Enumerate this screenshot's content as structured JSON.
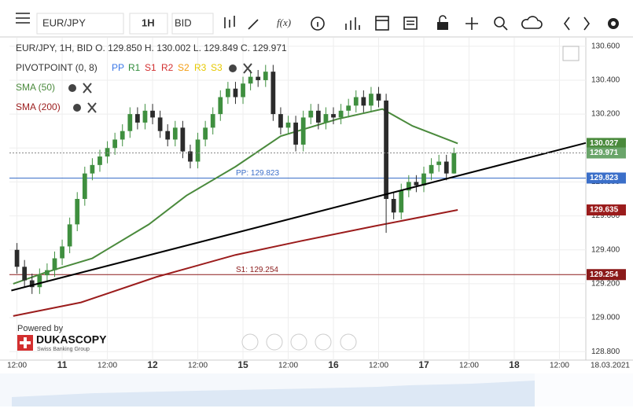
{
  "toolbar": {
    "symbol": "EUR/JPY",
    "period": "1H",
    "side": "BID",
    "fx": "f(x)"
  },
  "legend": {
    "ohlc": "EUR/JPY, 1H, BID   O. 129.850 H. 130.002 L. 129.849 C. 129.971",
    "pivot": "PIVOTPOINT (0, 8)",
    "pivot_levels": [
      {
        "name": "PP",
        "color": "#3b78e7"
      },
      {
        "name": "R1",
        "color": "#2e8b3a"
      },
      {
        "name": "S1",
        "color": "#d32f2f"
      },
      {
        "name": "R2",
        "color": "#d32f2f"
      },
      {
        "name": "S2",
        "color": "#f39c12"
      },
      {
        "name": "R3",
        "color": "#e6c800"
      },
      {
        "name": "S3",
        "color": "#e6c800"
      }
    ]
  },
  "branding": {
    "powered": "Powered by",
    "name": "DUKASCOPY",
    "tagline": "Swiss Banking Group"
  },
  "chart_data": {
    "type": "candlestick",
    "grid": true,
    "up_color": "#3f8f3f",
    "down_color": "#2b2b2b",
    "x": [
      0,
      2,
      4,
      6,
      8,
      10,
      12,
      14,
      16,
      18,
      20,
      22,
      24,
      26,
      28,
      30,
      32,
      34,
      36,
      38,
      40,
      42,
      44,
      46,
      48,
      50,
      52,
      54,
      56,
      58,
      60,
      62,
      64,
      66,
      68,
      70,
      72,
      74,
      76,
      78,
      80,
      82,
      84,
      86,
      88,
      90,
      92,
      94,
      96,
      98,
      100,
      102,
      104,
      106,
      108,
      110,
      112,
      114,
      116
    ],
    "open": [
      129.4,
      129.3,
      129.22,
      129.18,
      129.25,
      129.28,
      129.35,
      129.42,
      129.55,
      129.7,
      129.85,
      129.9,
      129.95,
      130.0,
      130.05,
      130.1,
      130.2,
      130.15,
      130.22,
      130.18,
      130.1,
      130.05,
      130.12,
      129.98,
      129.92,
      130.05,
      130.12,
      130.2,
      130.3,
      130.35,
      130.3,
      130.38,
      130.42,
      130.4,
      130.45,
      130.2,
      130.12,
      130.15,
      130.02,
      130.18,
      130.22,
      130.15,
      130.2,
      130.18,
      130.22,
      130.25,
      130.3,
      130.25,
      130.32,
      130.28,
      129.7,
      129.62,
      129.75,
      129.8,
      129.78,
      129.85,
      129.9,
      129.92,
      129.85
    ],
    "high": [
      129.44,
      129.34,
      129.26,
      129.29,
      129.32,
      129.39,
      129.46,
      129.59,
      129.74,
      129.89,
      129.94,
      129.99,
      130.04,
      130.09,
      130.14,
      130.24,
      130.24,
      130.26,
      130.26,
      130.22,
      130.14,
      130.16,
      130.16,
      130.02,
      130.09,
      130.16,
      130.24,
      130.34,
      130.39,
      130.39,
      130.42,
      130.46,
      130.46,
      130.49,
      130.49,
      130.24,
      130.19,
      130.19,
      130.22,
      130.26,
      130.26,
      130.24,
      130.24,
      130.26,
      130.29,
      130.34,
      130.34,
      130.36,
      130.36,
      130.32,
      129.74,
      129.79,
      129.84,
      129.84,
      129.89,
      129.94,
      129.96,
      129.96,
      130.002
    ],
    "low": [
      129.26,
      129.18,
      129.14,
      129.14,
      129.21,
      129.24,
      129.31,
      129.38,
      129.51,
      129.66,
      129.81,
      129.86,
      129.91,
      129.96,
      130.01,
      130.06,
      130.11,
      130.11,
      130.14,
      130.06,
      130.01,
      130.01,
      129.94,
      129.88,
      129.88,
      130.01,
      130.08,
      130.16,
      130.26,
      130.26,
      130.26,
      130.34,
      130.36,
      130.36,
      130.16,
      130.08,
      130.08,
      129.98,
      129.98,
      130.14,
      130.11,
      130.11,
      130.14,
      130.14,
      130.18,
      130.21,
      130.21,
      130.21,
      130.24,
      129.5,
      129.58,
      129.58,
      129.71,
      129.74,
      129.74,
      129.81,
      129.86,
      129.81,
      129.849
    ],
    "close": [
      129.3,
      129.22,
      129.18,
      129.25,
      129.28,
      129.35,
      129.42,
      129.55,
      129.7,
      129.85,
      129.9,
      129.95,
      130.0,
      130.05,
      130.1,
      130.2,
      130.15,
      130.22,
      130.18,
      130.1,
      130.05,
      130.12,
      129.98,
      129.92,
      130.05,
      130.12,
      130.2,
      130.3,
      130.35,
      130.3,
      130.38,
      130.42,
      130.4,
      130.45,
      130.2,
      130.12,
      130.15,
      130.02,
      130.18,
      130.22,
      130.15,
      130.2,
      130.18,
      130.22,
      130.25,
      130.3,
      130.25,
      130.32,
      130.28,
      129.7,
      129.62,
      129.75,
      129.8,
      129.78,
      129.85,
      129.9,
      129.92,
      129.85,
      129.971
    ],
    "overlays": [
      {
        "name": "SMA (50)",
        "color": "#4a8a3c",
        "x": [
          -1,
          8,
          20,
          35,
          45,
          58,
          70,
          85,
          97,
          105,
          117
        ],
        "values": [
          129.2,
          129.27,
          129.35,
          129.55,
          129.72,
          129.89,
          130.07,
          130.17,
          130.23,
          130.13,
          130.027
        ]
      },
      {
        "name": "SMA (200)",
        "color": "#9b1c1c",
        "x": [
          -1,
          17,
          37,
          58,
          75,
          95,
          117
        ],
        "values": [
          129.01,
          129.09,
          129.24,
          129.37,
          129.45,
          129.54,
          129.635
        ]
      }
    ],
    "trendline": {
      "color": "#000000",
      "x": [
        -1.5,
        151
      ],
      "values": [
        129.16,
        130.03
      ]
    },
    "levels": [
      {
        "label": "PP: 129.823",
        "value": 129.823,
        "color": "#3b6fc9"
      },
      {
        "label": "S1: 129.254",
        "value": 129.254,
        "color": "#8b1a1a"
      }
    ],
    "xlim": [
      -2,
      151
    ],
    "ylim": [
      128.75,
      130.65
    ],
    "yticks": [
      {
        "value": 128.8,
        "label": "128.800"
      },
      {
        "value": 129.0,
        "label": "129.000"
      },
      {
        "value": 129.2,
        "label": "129.200"
      },
      {
        "value": 129.4,
        "label": "129.400"
      },
      {
        "value": 129.6,
        "label": "129.600"
      },
      {
        "value": 129.8,
        "label": "129.800"
      },
      {
        "value": 130.0,
        "label": "130.000"
      },
      {
        "value": 130.2,
        "label": "130.200"
      },
      {
        "value": 130.4,
        "label": "130.400"
      },
      {
        "value": 130.6,
        "label": "130.600"
      }
    ],
    "xticks": [
      {
        "value": 0,
        "label": "12:00"
      },
      {
        "value": 12,
        "label": "11"
      },
      {
        "value": 24,
        "label": "12:00"
      },
      {
        "value": 36,
        "label": "12"
      },
      {
        "value": 48,
        "label": "12:00"
      },
      {
        "value": 60,
        "label": "15"
      },
      {
        "value": 72,
        "label": "12:00"
      },
      {
        "value": 84,
        "label": "16"
      },
      {
        "value": 96,
        "label": "12:00"
      },
      {
        "value": 108,
        "label": "17"
      },
      {
        "value": 120,
        "label": "12:00"
      },
      {
        "value": 132,
        "label": "18"
      },
      {
        "value": 144,
        "label": "12:00"
      }
    ],
    "date_label": "18.03.2021"
  }
}
